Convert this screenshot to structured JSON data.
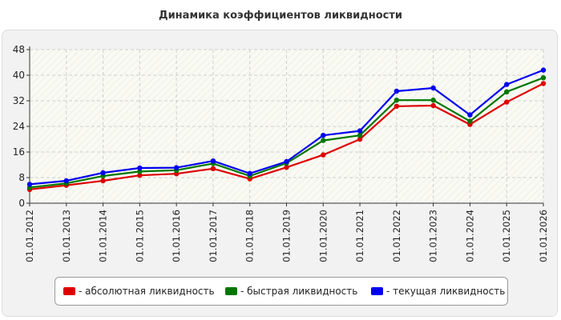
{
  "chart_data": {
    "type": "line",
    "title": "Динамика коэффициентов ликвидности",
    "xlabel": "",
    "ylabel": "",
    "ylim": [
      0,
      48
    ],
    "yticks": [
      0,
      8,
      16,
      24,
      32,
      40,
      48
    ],
    "grid": true,
    "legend_position": "bottom",
    "categories": [
      "01.01.2012",
      "01.01.2013",
      "01.01.2014",
      "01.01.2015",
      "01.01.2016",
      "01.01.2017",
      "01.01.2018",
      "01.01.2019",
      "01.01.2020",
      "01.01.2021",
      "01.01.2022",
      "01.01.2023",
      "01.01.2024",
      "01.01.2025",
      "01.01.2026"
    ],
    "series": [
      {
        "name": "- абсолютная ликвидность",
        "color": "#dd0000",
        "values": [
          4.3,
          5.6,
          7.0,
          8.7,
          9.2,
          10.8,
          7.6,
          11.2,
          15.1,
          20.0,
          30.3,
          30.5,
          24.6,
          31.6,
          37.4
        ]
      },
      {
        "name": "- быстрая ликвидность",
        "color": "#007700",
        "values": [
          4.9,
          6.2,
          8.5,
          9.9,
          10.3,
          12.4,
          8.5,
          12.5,
          19.6,
          21.2,
          32.2,
          32.2,
          25.6,
          34.8,
          39.2
        ]
      },
      {
        "name": "- текущая ликвидность",
        "color": "#0000ee",
        "values": [
          5.9,
          7.0,
          9.5,
          11.0,
          11.1,
          13.2,
          9.3,
          13.0,
          21.2,
          22.6,
          35.0,
          36.0,
          27.6,
          37.1,
          41.6
        ]
      }
    ]
  }
}
